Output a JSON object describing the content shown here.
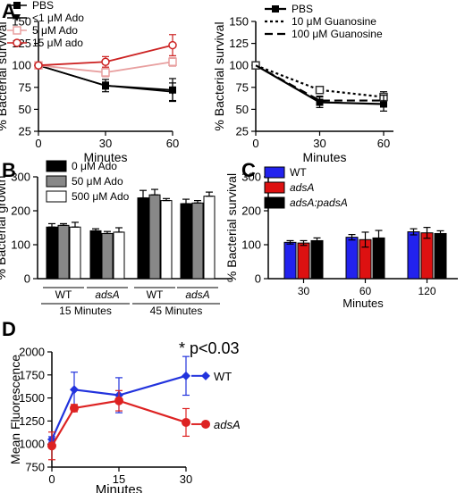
{
  "panel_labels": [
    "A",
    "B",
    "C",
    "D"
  ],
  "chart_data": [
    {
      "panel": "A-left",
      "type": "line",
      "xlabel": "Minutes",
      "ylabel": "% Bacterial survival",
      "x": [
        0,
        30,
        60
      ],
      "ylim": [
        25,
        150
      ],
      "yticks": [
        25,
        50,
        75,
        100,
        125,
        150
      ],
      "series": [
        {
          "name": "PBS",
          "color": "#000000",
          "marker": "square",
          "values": [
            100,
            77,
            72
          ],
          "err": [
            0,
            7,
            13
          ]
        },
        {
          "name": "<1 μM Ado",
          "color": "#000000",
          "marker": "triangle-down",
          "values": [
            100,
            77,
            70
          ],
          "err": [
            0,
            4,
            10
          ]
        },
        {
          "name": "5 μM Ado",
          "color": "#e8a0a0",
          "marker": "square-open",
          "values": [
            100,
            92,
            104
          ],
          "err": [
            0,
            5,
            5
          ]
        },
        {
          "name": "15 μM ado",
          "color": "#cc2222",
          "marker": "circle-open",
          "values": [
            100,
            104,
            123
          ],
          "err": [
            0,
            6,
            12
          ]
        }
      ]
    },
    {
      "panel": "A-right",
      "type": "line",
      "xlabel": "Minutes",
      "ylabel": "% Bacterial survival",
      "x": [
        0,
        30,
        60
      ],
      "ylim": [
        25,
        150
      ],
      "yticks": [
        25,
        50,
        75,
        100,
        125,
        150
      ],
      "series": [
        {
          "name": "PBS",
          "color": "#000000",
          "style": "solid",
          "values": [
            100,
            58,
            56
          ],
          "err": [
            0,
            6,
            8
          ]
        },
        {
          "name": "10 μM Guanosine",
          "color": "#000000",
          "style": "dotted",
          "values": [
            100,
            72,
            64
          ],
          "err": [
            0,
            4,
            6
          ]
        },
        {
          "name": "100 μM Guanosine",
          "color": "#000000",
          "style": "dashed",
          "values": [
            100,
            60,
            60
          ],
          "err": [
            0,
            5,
            6
          ]
        }
      ]
    },
    {
      "panel": "B",
      "type": "bar",
      "ylabel": "% Bacterial growth",
      "ylim": [
        0,
        300
      ],
      "yticks": [
        0,
        100,
        200,
        300
      ],
      "group_labels": [
        "WT",
        "adsA",
        "WT",
        "adsA"
      ],
      "time_labels": [
        "15 Minutes",
        "45 Minutes"
      ],
      "series": [
        {
          "name": "0 μM Ado",
          "color": "#000000",
          "values": [
            152,
            141,
            238,
            221
          ],
          "err": [
            10,
            6,
            22,
            13
          ]
        },
        {
          "name": "50 μM Ado",
          "color": "#888888",
          "values": [
            157,
            133,
            247,
            223
          ],
          "err": [
            5,
            6,
            16,
            7
          ]
        },
        {
          "name": "500 μM Ado",
          "color": "#ffffff",
          "values": [
            152,
            137,
            230,
            243
          ],
          "err": [
            14,
            13,
            6,
            12
          ]
        }
      ]
    },
    {
      "panel": "C",
      "type": "bar",
      "xlabel": "Minutes",
      "ylabel": "% Bacterial survival",
      "ylim": [
        0,
        300
      ],
      "yticks": [
        0,
        100,
        200,
        300
      ],
      "categories": [
        "30",
        "60",
        "120"
      ],
      "series": [
        {
          "name": "WT",
          "color": "#2222ee",
          "values": [
            107,
            122,
            138
          ],
          "err": [
            5,
            8,
            9
          ]
        },
        {
          "name": "adsA",
          "color": "#dd1111",
          "values": [
            105,
            115,
            135
          ],
          "err": [
            7,
            22,
            16
          ]
        },
        {
          "name": "adsA:padsA",
          "color": "#000000",
          "values": [
            112,
            120,
            133
          ],
          "err": [
            8,
            22,
            8
          ]
        }
      ]
    },
    {
      "panel": "D",
      "type": "line",
      "xlabel": "Minutes",
      "ylabel": "Mean Fluorescence",
      "x": [
        0,
        5,
        15,
        30
      ],
      "ylim": [
        750,
        2000
      ],
      "yticks": [
        750,
        1000,
        1250,
        1500,
        1750,
        2000
      ],
      "xticks": [
        0,
        15,
        30
      ],
      "annotation": "* p<0.03",
      "series": [
        {
          "name": "WT",
          "color": "#2233dd",
          "values": [
            1050,
            1590,
            1530,
            1740
          ],
          "err": [
            30,
            190,
            190,
            210
          ]
        },
        {
          "name": "adsA",
          "color": "#dd2222",
          "values": [
            980,
            1390,
            1470,
            1235
          ],
          "err": [
            150,
            40,
            110,
            150
          ]
        }
      ]
    }
  ]
}
